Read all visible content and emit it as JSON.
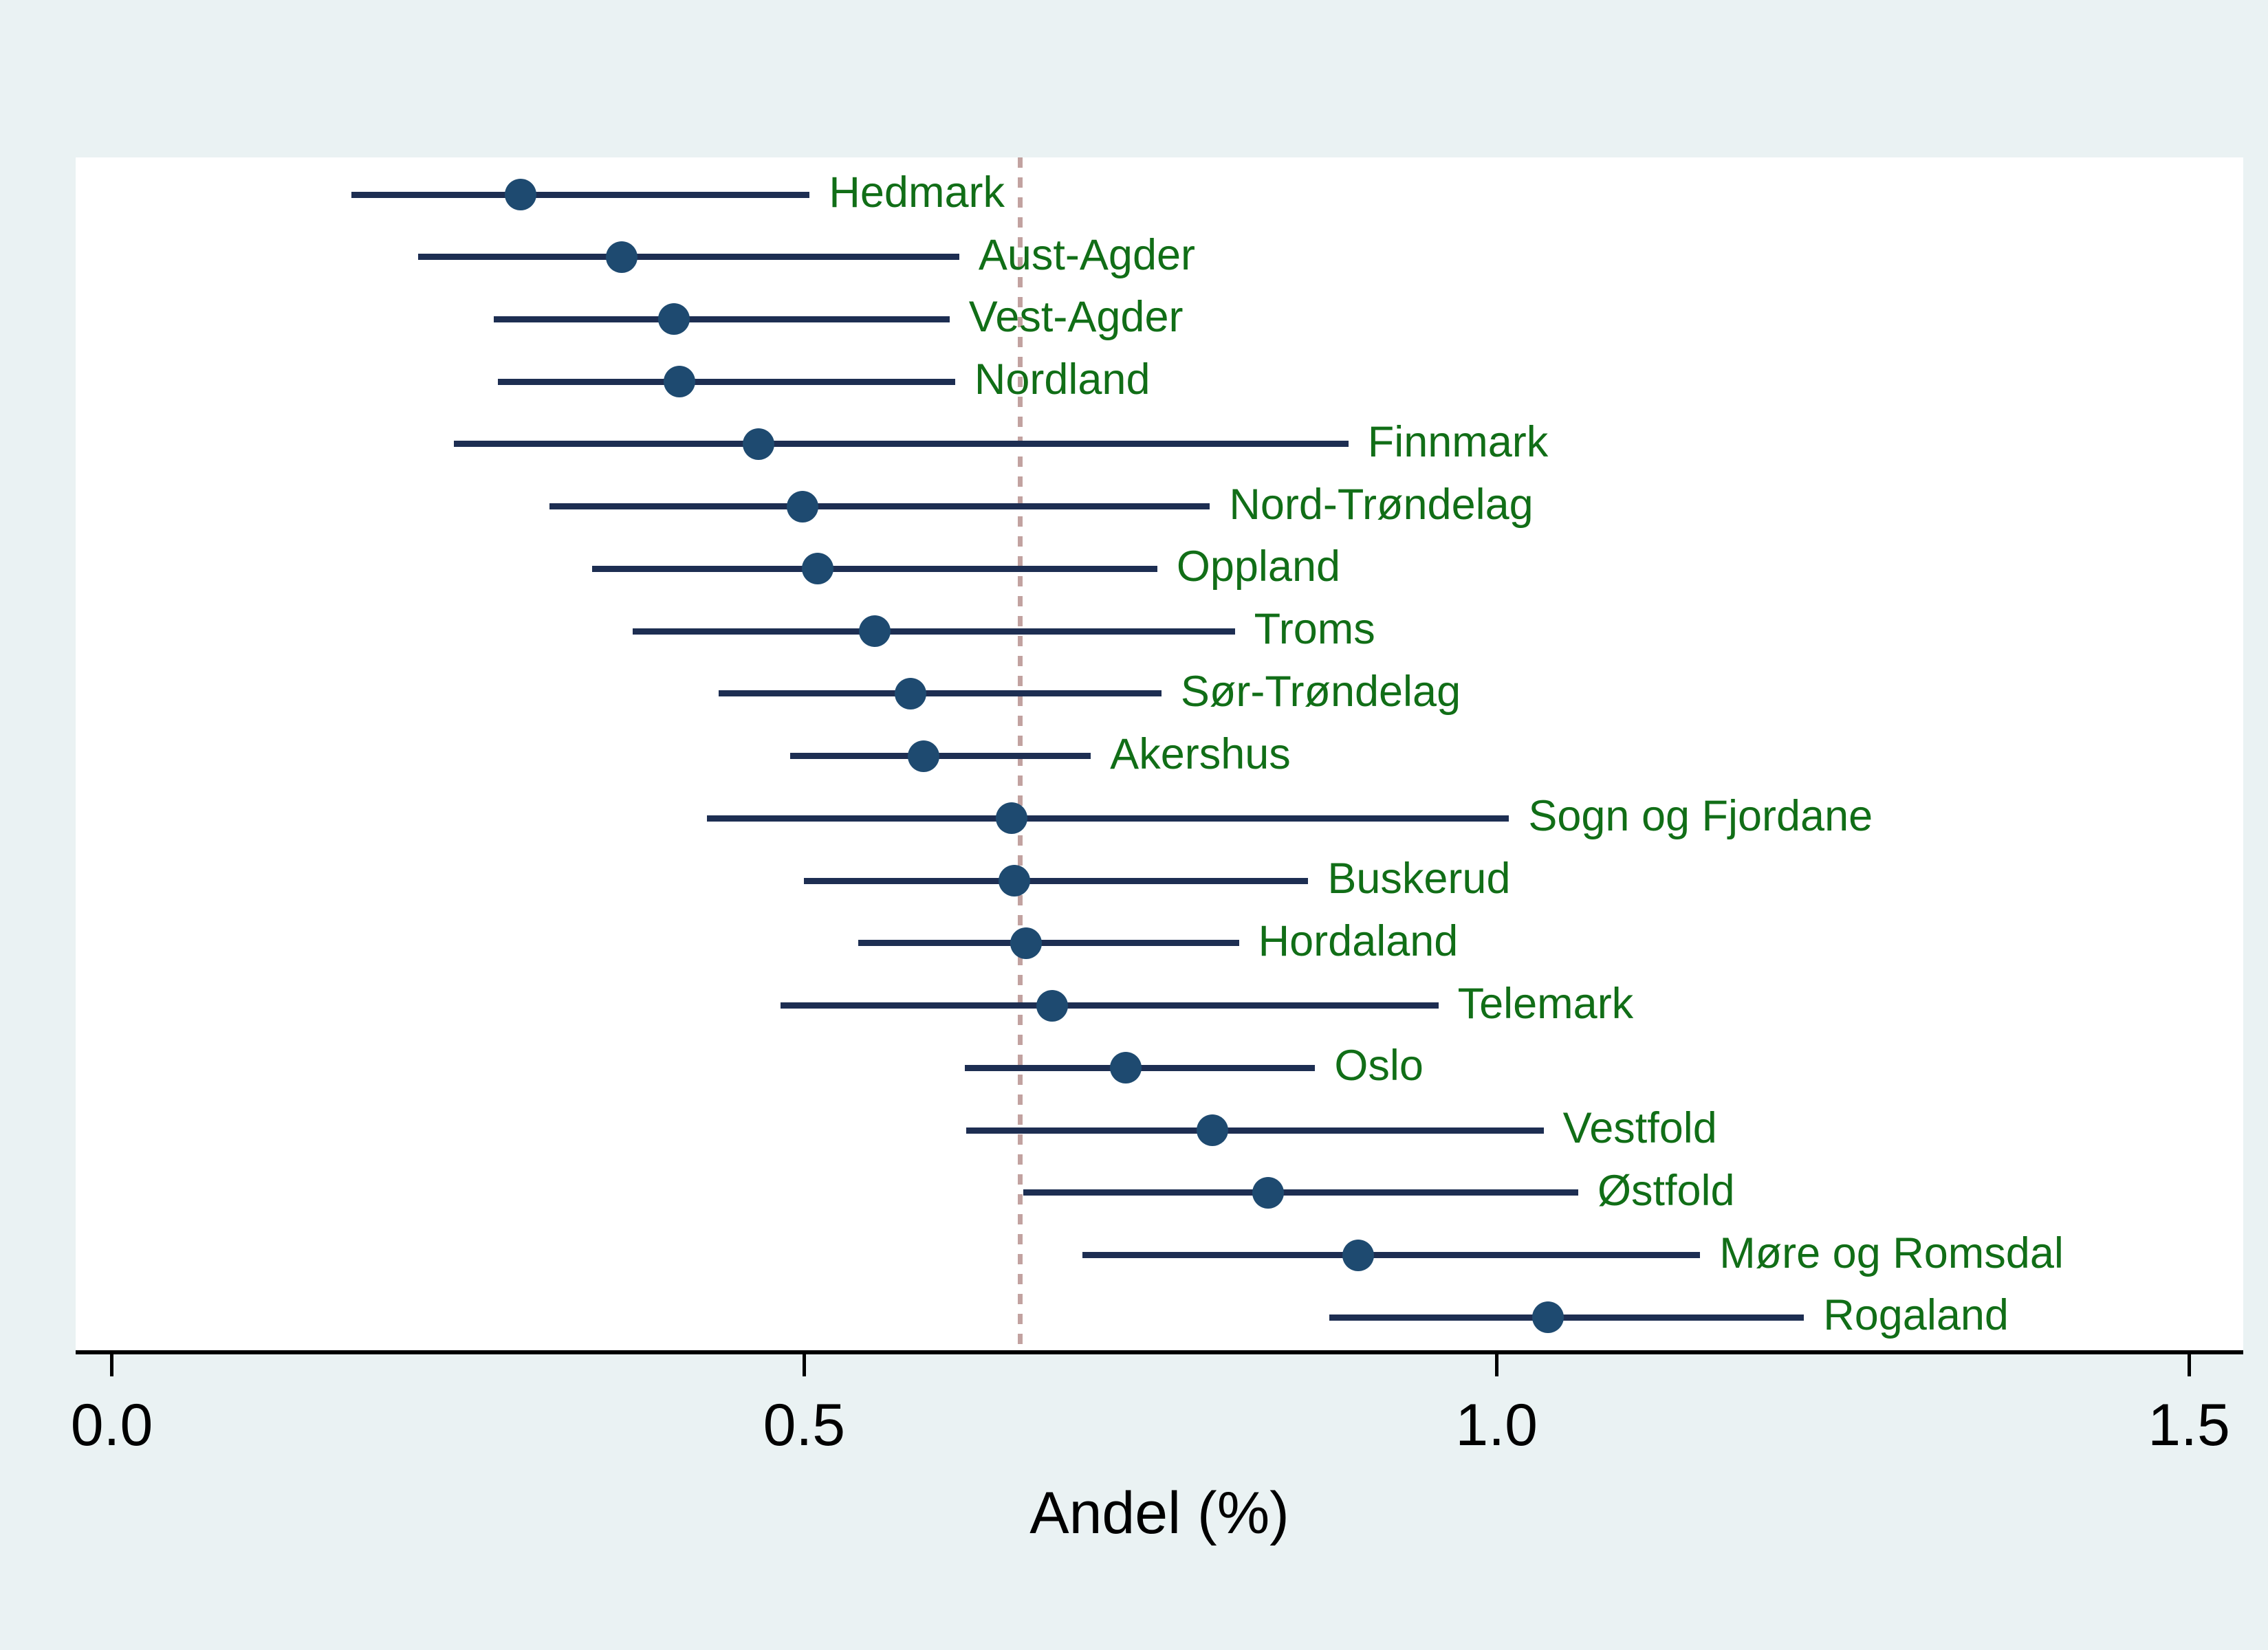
{
  "chart_data": {
    "type": "scatter",
    "subtype": "horizontal-dot-plot-with-confidence-intervals",
    "title": "",
    "xlabel": "Andel (%)",
    "ylabel": "",
    "xlim": [
      0,
      1.54
    ],
    "x_ticks": [
      0.0,
      0.5,
      1.0,
      1.5
    ],
    "x_tick_labels": [
      "0.0",
      "0.5",
      "1.0",
      "1.5"
    ],
    "reference_line_x": 0.656,
    "grid": false,
    "legend": false,
    "points": [
      {
        "name": "Hedmark",
        "estimate": 0.295,
        "ci_low": 0.173,
        "ci_high": 0.504
      },
      {
        "name": "Aust-Agder",
        "estimate": 0.368,
        "ci_low": 0.221,
        "ci_high": 0.612
      },
      {
        "name": "Vest-Agder",
        "estimate": 0.406,
        "ci_low": 0.276,
        "ci_high": 0.605
      },
      {
        "name": "Nordland",
        "estimate": 0.41,
        "ci_low": 0.279,
        "ci_high": 0.609
      },
      {
        "name": "Finnmark",
        "estimate": 0.467,
        "ci_low": 0.247,
        "ci_high": 0.893
      },
      {
        "name": "Nord-Trøndelag",
        "estimate": 0.499,
        "ci_low": 0.316,
        "ci_high": 0.793
      },
      {
        "name": "Oppland",
        "estimate": 0.51,
        "ci_low": 0.347,
        "ci_high": 0.755
      },
      {
        "name": "Troms",
        "estimate": 0.551,
        "ci_low": 0.376,
        "ci_high": 0.811
      },
      {
        "name": "Sør-Trøndelag",
        "estimate": 0.577,
        "ci_low": 0.438,
        "ci_high": 0.758
      },
      {
        "name": "Akershus",
        "estimate": 0.586,
        "ci_low": 0.49,
        "ci_high": 0.707
      },
      {
        "name": "Sogn og Fjordane",
        "estimate": 0.65,
        "ci_low": 0.43,
        "ci_high": 1.009
      },
      {
        "name": "Buskerud",
        "estimate": 0.652,
        "ci_low": 0.5,
        "ci_high": 0.864
      },
      {
        "name": "Hordaland",
        "estimate": 0.66,
        "ci_low": 0.539,
        "ci_high": 0.814
      },
      {
        "name": "Telemark",
        "estimate": 0.679,
        "ci_low": 0.483,
        "ci_high": 0.958
      },
      {
        "name": "Oslo",
        "estimate": 0.732,
        "ci_low": 0.616,
        "ci_high": 0.869
      },
      {
        "name": "Vestfold",
        "estimate": 0.795,
        "ci_low": 0.617,
        "ci_high": 1.034
      },
      {
        "name": "Østfold",
        "estimate": 0.835,
        "ci_low": 0.658,
        "ci_high": 1.059
      },
      {
        "name": "Møre og Romsdal",
        "estimate": 0.9,
        "ci_low": 0.701,
        "ci_high": 1.147
      },
      {
        "name": "Rogaland",
        "estimate": 1.037,
        "ci_low": 0.879,
        "ci_high": 1.222
      }
    ]
  },
  "colors": {
    "background": "#eaf2f3",
    "plot_background": "#ffffff",
    "ci_line": "#1d2e52",
    "point_dot": "#1e4a70",
    "county_label": "#116e17",
    "reference_line": "#c2a2a0",
    "axis": "#000000"
  }
}
